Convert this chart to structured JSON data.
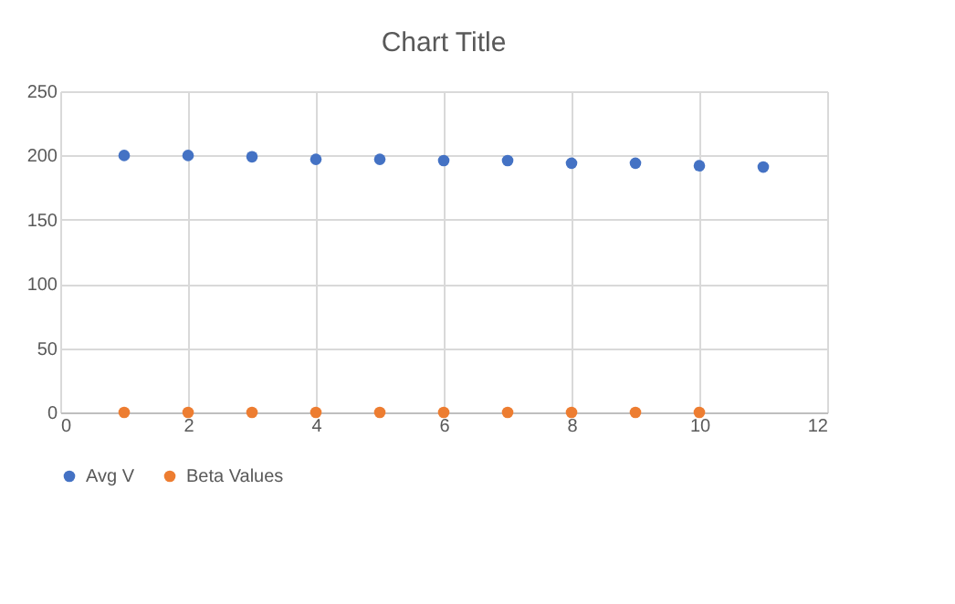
{
  "chart_data": {
    "type": "scatter",
    "title": "Chart Title",
    "series": [
      {
        "name": "Avg V",
        "color": "#4472c4",
        "x": [
          1,
          2,
          3,
          4,
          5,
          6,
          7,
          8,
          9,
          10,
          11
        ],
        "values": [
          200,
          200,
          199,
          197,
          197,
          196,
          196,
          194,
          194,
          192,
          191
        ]
      },
      {
        "name": "Beta Values",
        "color": "#ed7d31",
        "x": [
          1,
          2,
          3,
          4,
          5,
          6,
          7,
          8,
          9,
          10
        ],
        "values": [
          0,
          0,
          0,
          0,
          0,
          0,
          0,
          0,
          0,
          0
        ]
      }
    ],
    "xlim": [
      0,
      12
    ],
    "xticks": [
      0,
      2,
      4,
      6,
      8,
      10,
      12
    ],
    "ylim": [
      0,
      250
    ],
    "yticks": [
      0,
      50,
      100,
      150,
      200,
      250
    ],
    "grid": true,
    "legend": "bottom",
    "marker": "circle"
  }
}
